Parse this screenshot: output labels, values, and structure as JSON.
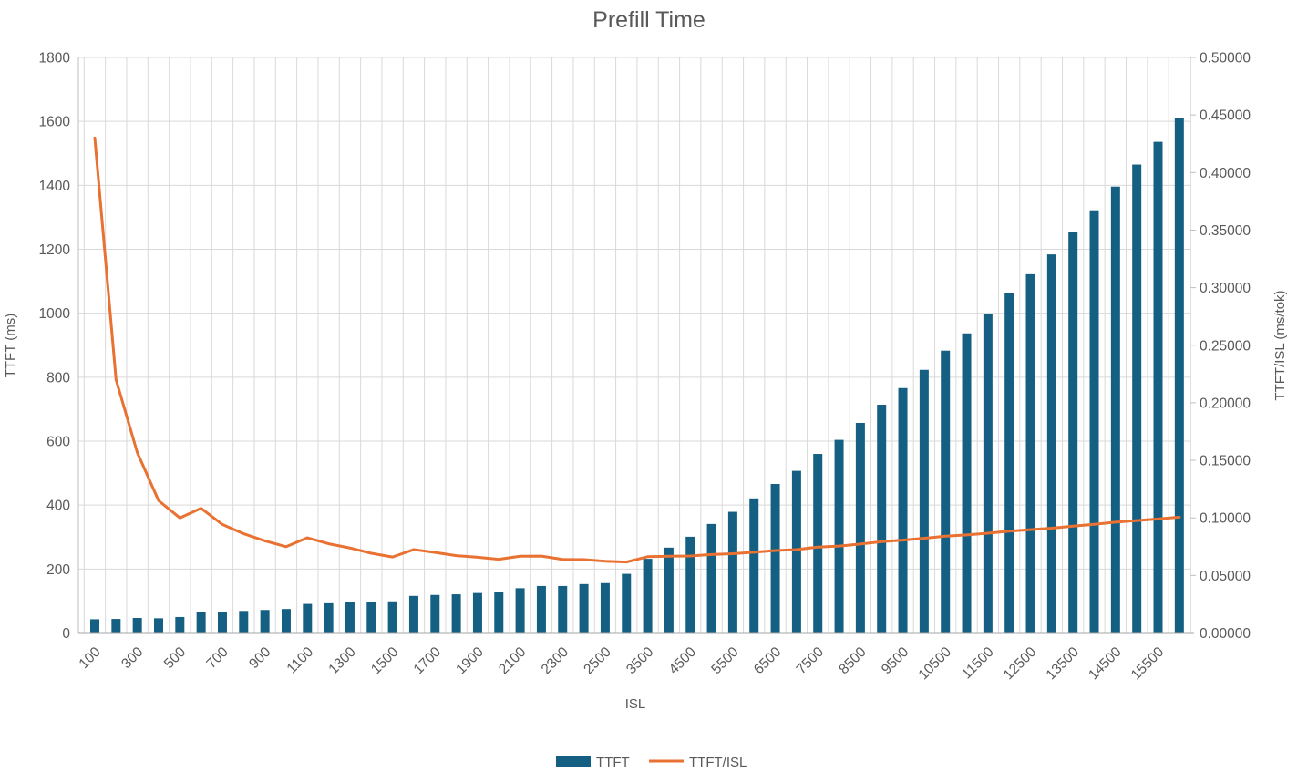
{
  "title": "Prefill Time",
  "legend": {
    "ttft": "TTFT",
    "ttft_isl": "TTFT/ISL"
  },
  "colors": {
    "bar": "#156082",
    "line": "#E97132",
    "grid": "#D9D9D9",
    "axis": "#BFBFBF",
    "text": "#595959",
    "background": "#FFFFFF"
  },
  "axes": {
    "x_title": "ISL",
    "left_title": "TTFT (ms)",
    "right_title": "TTFT/ISL  (ms/tok)",
    "left_ticks": [
      0,
      200,
      400,
      600,
      800,
      1000,
      1200,
      1400,
      1600,
      1800
    ],
    "right_ticks": [
      "0.00000",
      "0.05000",
      "0.10000",
      "0.15000",
      "0.20000",
      "0.25000",
      "0.30000",
      "0.35000",
      "0.40000",
      "0.45000",
      "0.50000"
    ],
    "x_tick_labels": [
      "100",
      "300",
      "500",
      "700",
      "900",
      "1100",
      "1300",
      "1500",
      "1700",
      "1900",
      "2100",
      "2300",
      "2500",
      "3500",
      "4500",
      "5500",
      "6500",
      "7500",
      "8500",
      "9500",
      "10500",
      "11500",
      "12500",
      "13500",
      "14500",
      "15500"
    ]
  },
  "chart_data": {
    "type": "bar+line",
    "title": "Prefill Time",
    "xlabel": "ISL",
    "ylabel_left": "TTFT (ms)",
    "ylabel_right": "TTFT/ISL (ms/tok)",
    "ylim_left": [
      0,
      1800
    ],
    "ylim_right": [
      0,
      0.5
    ],
    "grid": true,
    "legend_position": "bottom",
    "categories": [
      100,
      200,
      300,
      400,
      500,
      600,
      700,
      800,
      900,
      1000,
      1100,
      1200,
      1300,
      1400,
      1500,
      1600,
      1700,
      1800,
      1900,
      2000,
      2100,
      2200,
      2300,
      2400,
      2500,
      3000,
      3500,
      4000,
      4500,
      5000,
      5500,
      6000,
      6500,
      7000,
      7500,
      8000,
      8500,
      9000,
      9500,
      10000,
      10500,
      11000,
      11500,
      12000,
      12500,
      13000,
      13500,
      14000,
      14500,
      15000,
      15500,
      16000
    ],
    "series": [
      {
        "name": "TTFT",
        "type": "bar",
        "axis": "left",
        "values": [
          43,
          44,
          47,
          46,
          50,
          65,
          66,
          69,
          72,
          75,
          91,
          93,
          96,
          97,
          99,
          116,
          119,
          121,
          125,
          128,
          140,
          147,
          147,
          153,
          156,
          185,
          232,
          267,
          301,
          341,
          379,
          421,
          466,
          507,
          560,
          604,
          657,
          714,
          766,
          823,
          883,
          937,
          997,
          1062,
          1122,
          1184,
          1253,
          1322,
          1396,
          1465,
          1536,
          1610
        ]
      },
      {
        "name": "TTFT/ISL",
        "type": "line",
        "axis": "right",
        "values": [
          0.43,
          0.22,
          0.15667,
          0.115,
          0.1,
          0.10833,
          0.09429,
          0.08625,
          0.08,
          0.075,
          0.08273,
          0.0775,
          0.07385,
          0.06929,
          0.066,
          0.0725,
          0.07,
          0.06722,
          0.06579,
          0.064,
          0.06667,
          0.06682,
          0.06391,
          0.06375,
          0.0624,
          0.06167,
          0.06629,
          0.06675,
          0.06689,
          0.0682,
          0.06891,
          0.07017,
          0.07169,
          0.07243,
          0.07467,
          0.0755,
          0.07729,
          0.07933,
          0.08063,
          0.0823,
          0.0841,
          0.08518,
          0.0867,
          0.0885,
          0.08976,
          0.09108,
          0.09281,
          0.09443,
          0.09628,
          0.09767,
          0.0991,
          0.10063
        ]
      }
    ]
  }
}
